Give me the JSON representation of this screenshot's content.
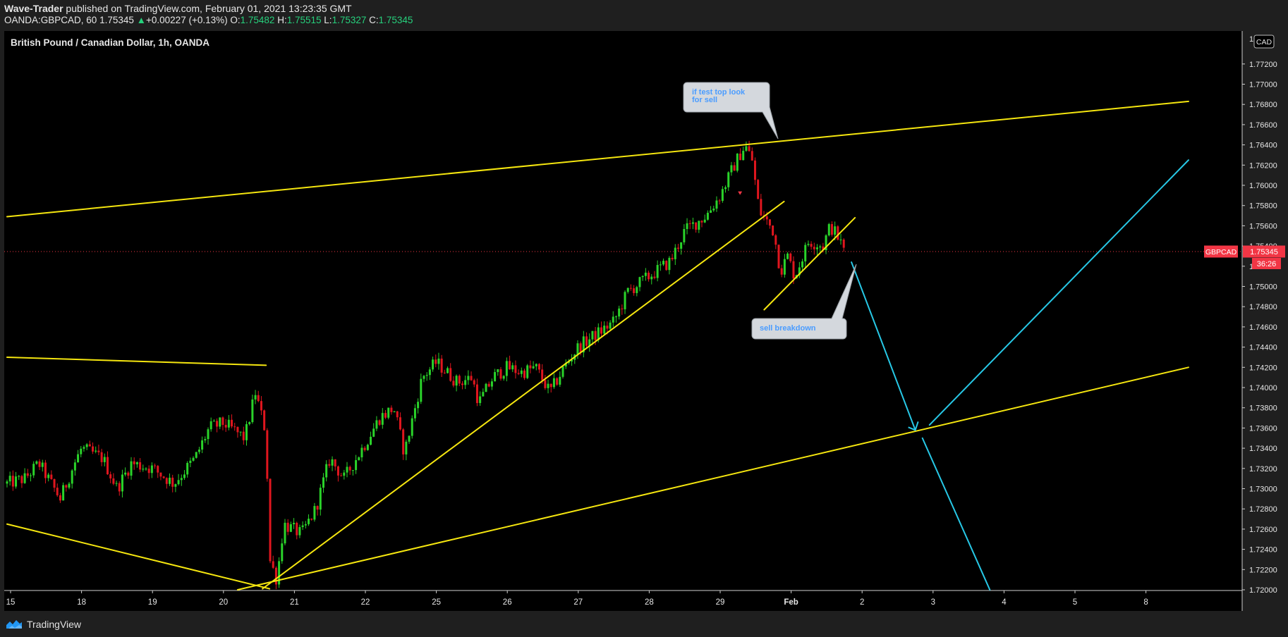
{
  "header": {
    "author": "Wave-Trader",
    "published_text": "published on TradingView.com, February 01, 2021 13:23:35 GMT",
    "symbol_info": "OANDA:GBPCAD, 60",
    "last_price": "1.75345",
    "change": "+0.00227 (+0.13%)",
    "open_label": "O:",
    "open_value": "1.75482",
    "high_label": "H:",
    "high_value": "1.75515",
    "low_label": "L:",
    "low_value": "1.75327",
    "close_label": "C:",
    "close_value": "1.75345"
  },
  "chart_data": {
    "type": "candlestick",
    "title": "British Pound / Canadian Dollar, 1h, OANDA",
    "currency_button": "CAD",
    "price_tag": {
      "label": "GBPCAD",
      "price": "1.75345",
      "countdown": "36:26"
    },
    "ylim": [
      1.72,
      1.7745
    ],
    "y_ticks": [
      "1.77200",
      "1.77000",
      "1.76800",
      "1.76600",
      "1.76400",
      "1.76200",
      "1.76000",
      "1.75800",
      "1.75600",
      "1.75400",
      "1.75200",
      "1.75000",
      "1.74800",
      "1.74600",
      "1.74400",
      "1.74200",
      "1.74000",
      "1.73800",
      "1.73600",
      "1.73400",
      "1.73200",
      "1.73000",
      "1.72800",
      "1.72600",
      "1.72400",
      "1.72200",
      "1.72000"
    ],
    "y_tick_top_partial": "1.",
    "x_ticks": [
      {
        "label": "15",
        "day": 0
      },
      {
        "label": "18",
        "day": 1
      },
      {
        "label": "19",
        "day": 2
      },
      {
        "label": "20",
        "day": 3
      },
      {
        "label": "21",
        "day": 4
      },
      {
        "label": "22",
        "day": 5
      },
      {
        "label": "25",
        "day": 6
      },
      {
        "label": "26",
        "day": 7
      },
      {
        "label": "27",
        "day": 8
      },
      {
        "label": "28",
        "day": 9
      },
      {
        "label": "29",
        "day": 10
      },
      {
        "label": "Feb",
        "day": 11
      },
      {
        "label": "2",
        "day": 12
      },
      {
        "label": "3",
        "day": 13
      },
      {
        "label": "4",
        "day": 14
      },
      {
        "label": "5",
        "day": 15
      },
      {
        "label": "8",
        "day": 16
      }
    ],
    "price_path": [
      [
        -0.05,
        1.7305
      ],
      [
        0.2,
        1.731
      ],
      [
        0.4,
        1.7325
      ],
      [
        0.7,
        1.729
      ],
      [
        0.9,
        1.7325
      ],
      [
        1.0,
        1.734
      ],
      [
        1.3,
        1.733
      ],
      [
        1.5,
        1.73
      ],
      [
        1.7,
        1.7325
      ],
      [
        2.0,
        1.732
      ],
      [
        2.3,
        1.7305
      ],
      [
        2.6,
        1.733
      ],
      [
        2.8,
        1.736
      ],
      [
        3.0,
        1.7365
      ],
      [
        3.3,
        1.735
      ],
      [
        3.45,
        1.7395
      ],
      [
        3.6,
        1.7355
      ],
      [
        3.65,
        1.723
      ],
      [
        3.75,
        1.721
      ],
      [
        3.85,
        1.7265
      ],
      [
        4.1,
        1.7255
      ],
      [
        4.3,
        1.728
      ],
      [
        4.5,
        1.733
      ],
      [
        4.7,
        1.731
      ],
      [
        5.0,
        1.7345
      ],
      [
        5.2,
        1.737
      ],
      [
        5.4,
        1.738
      ],
      [
        5.55,
        1.7335
      ],
      [
        5.7,
        1.738
      ],
      [
        5.8,
        1.741
      ],
      [
        6.0,
        1.7425
      ],
      [
        6.3,
        1.7405
      ],
      [
        6.5,
        1.741
      ],
      [
        6.6,
        1.7385
      ],
      [
        6.8,
        1.741
      ],
      [
        7.0,
        1.742
      ],
      [
        7.2,
        1.7415
      ],
      [
        7.4,
        1.742
      ],
      [
        7.6,
        1.7395
      ],
      [
        7.8,
        1.742
      ],
      [
        8.0,
        1.744
      ],
      [
        8.3,
        1.7455
      ],
      [
        8.5,
        1.7465
      ],
      [
        8.7,
        1.7495
      ],
      [
        9.0,
        1.751
      ],
      [
        9.3,
        1.7525
      ],
      [
        9.5,
        1.7555
      ],
      [
        9.8,
        1.757
      ],
      [
        10.0,
        1.759
      ],
      [
        10.2,
        1.762
      ],
      [
        10.35,
        1.764
      ],
      [
        10.45,
        1.7625
      ],
      [
        10.55,
        1.7575
      ],
      [
        10.75,
        1.7555
      ],
      [
        10.85,
        1.7515
      ],
      [
        10.95,
        1.753
      ],
      [
        11.05,
        1.751
      ],
      [
        11.25,
        1.7545
      ],
      [
        11.45,
        1.754
      ],
      [
        11.55,
        1.756
      ],
      [
        11.65,
        1.755
      ],
      [
        11.75,
        1.7535
      ]
    ],
    "drawings": {
      "lines": [
        {
          "name": "upper-channel-line",
          "color": "#f5e60f",
          "points": [
            [
              -0.05,
              1.7569
            ],
            [
              16.6,
              1.7683
            ]
          ]
        },
        {
          "name": "lower-channel-line",
          "color": "#f5e60f",
          "points": [
            [
              3.2,
              1.72
            ],
            [
              16.6,
              1.742
            ]
          ]
        },
        {
          "name": "left-upper-line",
          "color": "#f5e60f",
          "points": [
            [
              -0.05,
              1.743
            ],
            [
              3.6,
              1.7422
            ]
          ]
        },
        {
          "name": "left-lower-line",
          "color": "#f5e60f",
          "points": [
            [
              -0.05,
              1.7265
            ],
            [
              3.65,
              1.7201
            ]
          ]
        },
        {
          "name": "rising-trendline",
          "color": "#f5e60f",
          "points": [
            [
              3.55,
              1.7201
            ],
            [
              10.9,
              1.7584
            ]
          ]
        },
        {
          "name": "short-trendline",
          "color": "#f5e60f",
          "points": [
            [
              10.62,
              1.7477
            ],
            [
              11.9,
              1.7568
            ]
          ]
        },
        {
          "name": "projection-down-1",
          "color": "#27c8e6",
          "points": [
            [
              11.85,
              1.7524
            ],
            [
              12.75,
              1.7358
            ]
          ]
        },
        {
          "name": "projection-up",
          "color": "#27c8e6",
          "points": [
            [
              12.95,
              1.7363
            ],
            [
              16.6,
              1.7625
            ]
          ]
        },
        {
          "name": "projection-down-2",
          "color": "#27c8e6",
          "points": [
            [
              12.85,
              1.735
            ],
            [
              13.8,
              1.72
            ]
          ]
        }
      ],
      "annotations": [
        {
          "name": "callout-test-top",
          "text": "if test top look for sell",
          "text_color": "#4a9cff"
        },
        {
          "name": "callout-sell-breakdown",
          "text": "sell breakdown",
          "text_color": "#4a9cff"
        }
      ]
    },
    "colors": {
      "background": "#000000",
      "up": "#2ad32a",
      "down": "#e0161e",
      "tag": "#f23645"
    },
    "grid": false
  },
  "footer": {
    "brand": "TradingView"
  }
}
